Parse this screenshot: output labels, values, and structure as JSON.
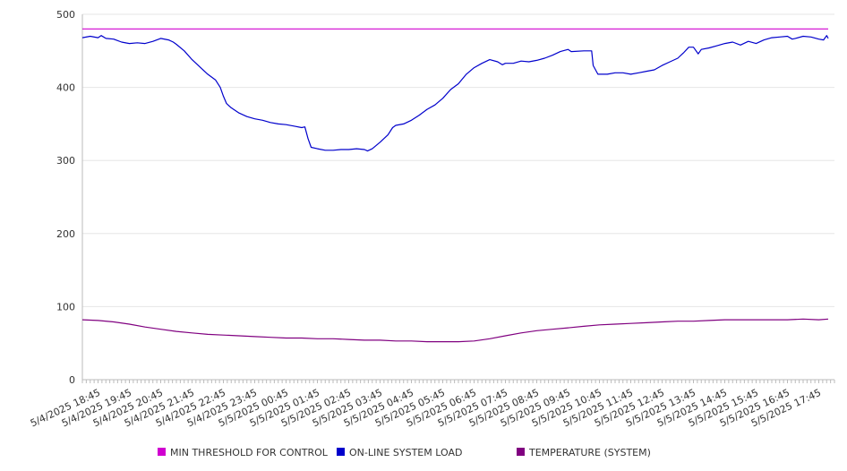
{
  "chart_data": {
    "type": "line",
    "title": "",
    "xlabel": "",
    "ylabel": "",
    "ylim": [
      0,
      500
    ],
    "yticks": [
      0,
      100,
      200,
      300,
      400,
      500
    ],
    "grid": "horizontal",
    "legend_position": "bottom",
    "categories": [
      "5/4/2025 18:45",
      "5/4/2025 19:45",
      "5/4/2025 20:45",
      "5/4/2025 21:45",
      "5/4/2025 22:45",
      "5/4/2025 23:45",
      "5/5/2025 00:45",
      "5/5/2025 01:45",
      "5/5/2025 02:45",
      "5/5/2025 03:45",
      "5/5/2025 04:45",
      "5/5/2025 05:45",
      "5/5/2025 06:45",
      "5/5/2025 07:45",
      "5/5/2025 08:45",
      "5/5/2025 09:45",
      "5/5/2025 10:45",
      "5/5/2025 11:45",
      "5/5/2025 12:45",
      "5/5/2025 13:45",
      "5/5/2025 14:45",
      "5/5/2025 15:45",
      "5/5/2025 16:45",
      "5/5/2025 17:45"
    ],
    "series": [
      {
        "name": "MIN THRESHOLD FOR CONTROL",
        "color": "#d000d0",
        "values": [
          [
            0,
            480
          ],
          [
            23.8,
            480
          ]
        ]
      },
      {
        "name": "ON-LINE SYSTEM LOAD",
        "color": "#0000cc",
        "values": [
          [
            0,
            468
          ],
          [
            0.25,
            470
          ],
          [
            0.5,
            468
          ],
          [
            0.6,
            471
          ],
          [
            0.75,
            467
          ],
          [
            1.0,
            466
          ],
          [
            1.25,
            462
          ],
          [
            1.5,
            460
          ],
          [
            1.75,
            461
          ],
          [
            2.0,
            460
          ],
          [
            2.25,
            463
          ],
          [
            2.5,
            467
          ],
          [
            2.75,
            465
          ],
          [
            2.9,
            462
          ],
          [
            3.0,
            459
          ],
          [
            3.25,
            450
          ],
          [
            3.5,
            438
          ],
          [
            3.75,
            428
          ],
          [
            4.0,
            418
          ],
          [
            4.25,
            410
          ],
          [
            4.4,
            400
          ],
          [
            4.5,
            388
          ],
          [
            4.6,
            378
          ],
          [
            4.75,
            372
          ],
          [
            5.0,
            365
          ],
          [
            5.25,
            360
          ],
          [
            5.5,
            357
          ],
          [
            5.75,
            355
          ],
          [
            6.0,
            352
          ],
          [
            6.25,
            350
          ],
          [
            6.5,
            349
          ],
          [
            6.75,
            347
          ],
          [
            7.0,
            345
          ],
          [
            7.1,
            346
          ],
          [
            7.2,
            330
          ],
          [
            7.3,
            318
          ],
          [
            7.5,
            316
          ],
          [
            7.75,
            314
          ],
          [
            8.0,
            314
          ],
          [
            8.25,
            315
          ],
          [
            8.5,
            315
          ],
          [
            8.75,
            316
          ],
          [
            9.0,
            315
          ],
          [
            9.1,
            313
          ],
          [
            9.25,
            316
          ],
          [
            9.5,
            325
          ],
          [
            9.75,
            335
          ],
          [
            9.9,
            345
          ],
          [
            10.0,
            348
          ],
          [
            10.25,
            350
          ],
          [
            10.5,
            355
          ],
          [
            10.75,
            362
          ],
          [
            11.0,
            370
          ],
          [
            11.25,
            376
          ],
          [
            11.5,
            385
          ],
          [
            11.75,
            397
          ],
          [
            12.0,
            405
          ],
          [
            12.25,
            418
          ],
          [
            12.5,
            427
          ],
          [
            12.75,
            433
          ],
          [
            13.0,
            438
          ],
          [
            13.25,
            435
          ],
          [
            13.4,
            431
          ],
          [
            13.5,
            433
          ],
          [
            13.75,
            433
          ],
          [
            14.0,
            436
          ],
          [
            14.25,
            435
          ],
          [
            14.5,
            437
          ],
          [
            14.75,
            440
          ],
          [
            15.0,
            444
          ],
          [
            15.25,
            449
          ],
          [
            15.5,
            452
          ],
          [
            15.6,
            449
          ],
          [
            16.0,
            450
          ],
          [
            16.25,
            450
          ],
          [
            16.3,
            430
          ],
          [
            16.45,
            418
          ],
          [
            16.75,
            418
          ],
          [
            17.0,
            420
          ],
          [
            17.25,
            420
          ],
          [
            17.5,
            418
          ],
          [
            17.75,
            420
          ],
          [
            18.0,
            422
          ],
          [
            18.25,
            424
          ],
          [
            18.5,
            430
          ],
          [
            18.75,
            435
          ],
          [
            19.0,
            440
          ],
          [
            19.2,
            448
          ],
          [
            19.35,
            455
          ],
          [
            19.5,
            455
          ],
          [
            19.65,
            446
          ],
          [
            19.75,
            452
          ],
          [
            20.0,
            454
          ],
          [
            20.25,
            457
          ],
          [
            20.5,
            460
          ],
          [
            20.75,
            462
          ],
          [
            21.0,
            458
          ],
          [
            21.25,
            463
          ],
          [
            21.5,
            460
          ],
          [
            21.75,
            465
          ],
          [
            22.0,
            468
          ],
          [
            22.25,
            469
          ],
          [
            22.5,
            470
          ],
          [
            22.65,
            466
          ],
          [
            22.75,
            467
          ],
          [
            23.0,
            470
          ],
          [
            23.25,
            469
          ],
          [
            23.5,
            466
          ],
          [
            23.65,
            465
          ],
          [
            23.75,
            471
          ],
          [
            23.8,
            467
          ]
        ]
      },
      {
        "name": "TEMPERATURE (SYSTEM)",
        "color": "#800080",
        "values": [
          [
            0,
            82
          ],
          [
            0.5,
            81
          ],
          [
            1.0,
            79
          ],
          [
            1.5,
            76
          ],
          [
            2.0,
            72
          ],
          [
            2.5,
            69
          ],
          [
            3.0,
            66
          ],
          [
            3.5,
            64
          ],
          [
            4.0,
            62
          ],
          [
            4.5,
            61
          ],
          [
            5.0,
            60
          ],
          [
            5.5,
            59
          ],
          [
            6.0,
            58
          ],
          [
            6.5,
            57
          ],
          [
            7.0,
            57
          ],
          [
            7.5,
            56
          ],
          [
            8.0,
            56
          ],
          [
            8.5,
            55
          ],
          [
            9.0,
            54
          ],
          [
            9.5,
            54
          ],
          [
            10.0,
            53
          ],
          [
            10.5,
            53
          ],
          [
            11.0,
            52
          ],
          [
            11.5,
            52
          ],
          [
            12.0,
            52
          ],
          [
            12.5,
            53
          ],
          [
            13.0,
            56
          ],
          [
            13.5,
            60
          ],
          [
            14.0,
            64
          ],
          [
            14.5,
            67
          ],
          [
            15.0,
            69
          ],
          [
            15.5,
            71
          ],
          [
            16.0,
            73
          ],
          [
            16.5,
            75
          ],
          [
            17.0,
            76
          ],
          [
            17.5,
            77
          ],
          [
            18.0,
            78
          ],
          [
            18.5,
            79
          ],
          [
            19.0,
            80
          ],
          [
            19.5,
            80
          ],
          [
            20.0,
            81
          ],
          [
            20.5,
            82
          ],
          [
            21.0,
            82
          ],
          [
            21.5,
            82
          ],
          [
            22.0,
            82
          ],
          [
            22.5,
            82
          ],
          [
            23.0,
            83
          ],
          [
            23.5,
            82
          ],
          [
            23.8,
            83
          ]
        ]
      }
    ]
  }
}
